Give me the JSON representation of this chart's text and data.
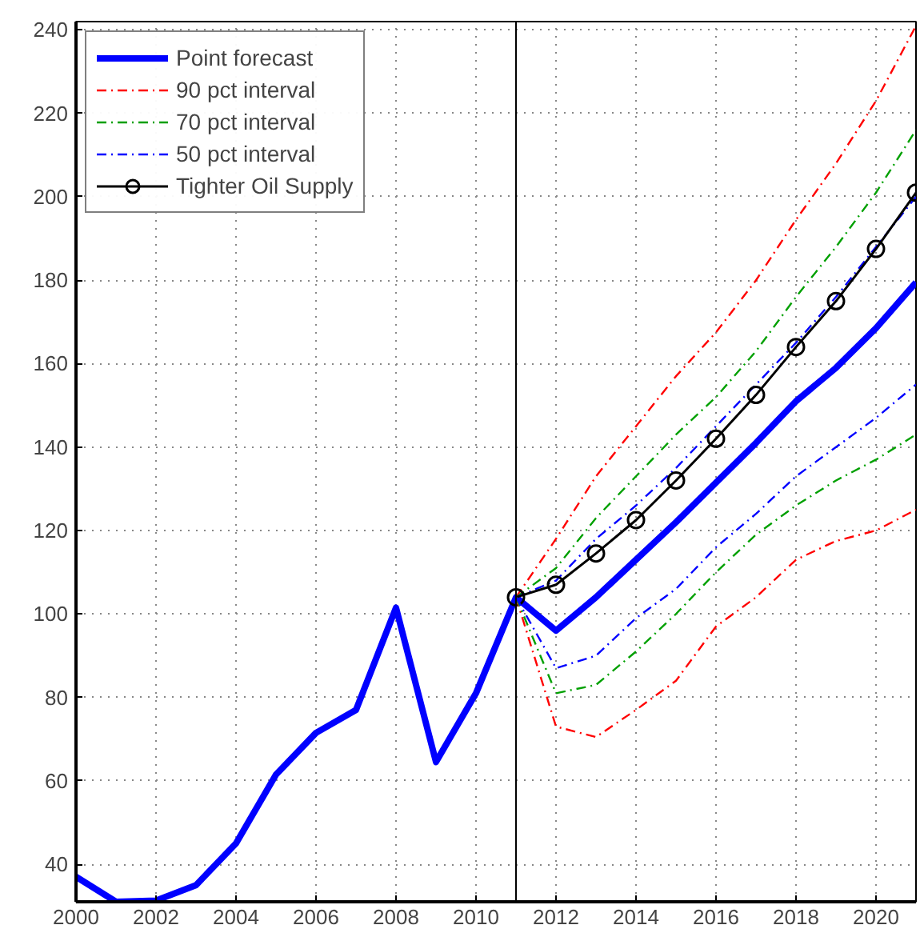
{
  "chart_data": {
    "type": "line",
    "x": [
      2000,
      2001,
      2002,
      2003,
      2004,
      2005,
      2006,
      2007,
      2008,
      2009,
      2010,
      2011,
      2012,
      2013,
      2014,
      2015,
      2016,
      2017,
      2018,
      2019,
      2020,
      2021
    ],
    "series": [
      {
        "name": "Point forecast",
        "color": "#0000ff",
        "values": [
          37,
          31,
          31.3,
          35,
          45,
          61.5,
          71.5,
          77,
          101.5,
          64.5,
          81,
          104,
          96,
          104,
          113,
          122,
          131.5,
          141,
          151,
          159,
          168.5,
          179.5
        ]
      },
      {
        "name": "90 pct interval",
        "color": "#ff0000",
        "line_style": "dashed",
        "x": [
          2011,
          2012,
          2013,
          2014,
          2015,
          2016,
          2017,
          2018,
          2019,
          2020,
          2021
        ],
        "values": [
          104,
          118,
          133,
          145,
          157,
          167.5,
          180,
          194.5,
          208,
          223,
          241
        ]
      },
      {
        "name": "70 pct interval",
        "color": "#00a000",
        "line_style": "dashed",
        "x": [
          2011,
          2012,
          2013,
          2014,
          2015,
          2016,
          2017,
          2018,
          2019,
          2020,
          2021
        ],
        "values": [
          104,
          111,
          123,
          133,
          143,
          152,
          163,
          176,
          188,
          201,
          216
        ]
      },
      {
        "name": "50 pct interval",
        "color": "#0000ff",
        "line_style": "dashed",
        "x": [
          2011,
          2012,
          2013,
          2014,
          2015,
          2016,
          2017,
          2018,
          2019,
          2020,
          2021
        ],
        "values": [
          104,
          108,
          118,
          126,
          135,
          145,
          155,
          165,
          176,
          188,
          200
        ]
      },
      {
        "name": "Tighter Oil Supply",
        "color": "#000000",
        "marker": "circle",
        "x": [
          2011,
          2012,
          2013,
          2014,
          2015,
          2016,
          2017,
          2018,
          2019,
          2020,
          2021
        ],
        "values": [
          104,
          107,
          114.5,
          122.5,
          132,
          142,
          152.5,
          164,
          175,
          187.5,
          201
        ]
      },
      {
        "name": null,
        "color": "#ff0000",
        "line_style": "dashed",
        "x": [
          2011,
          2012,
          2013,
          2014,
          2015,
          2016,
          2017,
          2018,
          2019,
          2020,
          2021
        ],
        "values": [
          104,
          73,
          70.5,
          77,
          84,
          97,
          104,
          113,
          117.5,
          120,
          125
        ]
      },
      {
        "name": null,
        "color": "#00a000",
        "line_style": "dashed",
        "x": [
          2011,
          2012,
          2013,
          2014,
          2015,
          2016,
          2017,
          2018,
          2019,
          2020,
          2021
        ],
        "values": [
          104,
          81,
          83,
          91,
          100,
          110,
          119,
          126,
          132,
          137,
          143
        ]
      },
      {
        "name": null,
        "color": "#0000ff",
        "line_style": "dashed",
        "x": [
          2011,
          2012,
          2013,
          2014,
          2015,
          2016,
          2017,
          2018,
          2019,
          2020,
          2021
        ],
        "values": [
          104,
          87,
          90,
          99,
          106,
          116,
          124,
          133,
          140,
          147,
          155
        ]
      }
    ],
    "xlim": [
      2000,
      2021
    ],
    "xticks": [
      2000,
      2002,
      2004,
      2006,
      2008,
      2010,
      2012,
      2014,
      2016,
      2018,
      2020
    ],
    "ylim": [
      31,
      242
    ],
    "yticks": [
      40,
      60,
      80,
      100,
      120,
      140,
      160,
      180,
      200,
      220,
      240
    ],
    "ref_lines": [
      {
        "axis": "x",
        "value": 2011,
        "color": "#000000"
      }
    ],
    "grid": true,
    "legend": "top left"
  }
}
